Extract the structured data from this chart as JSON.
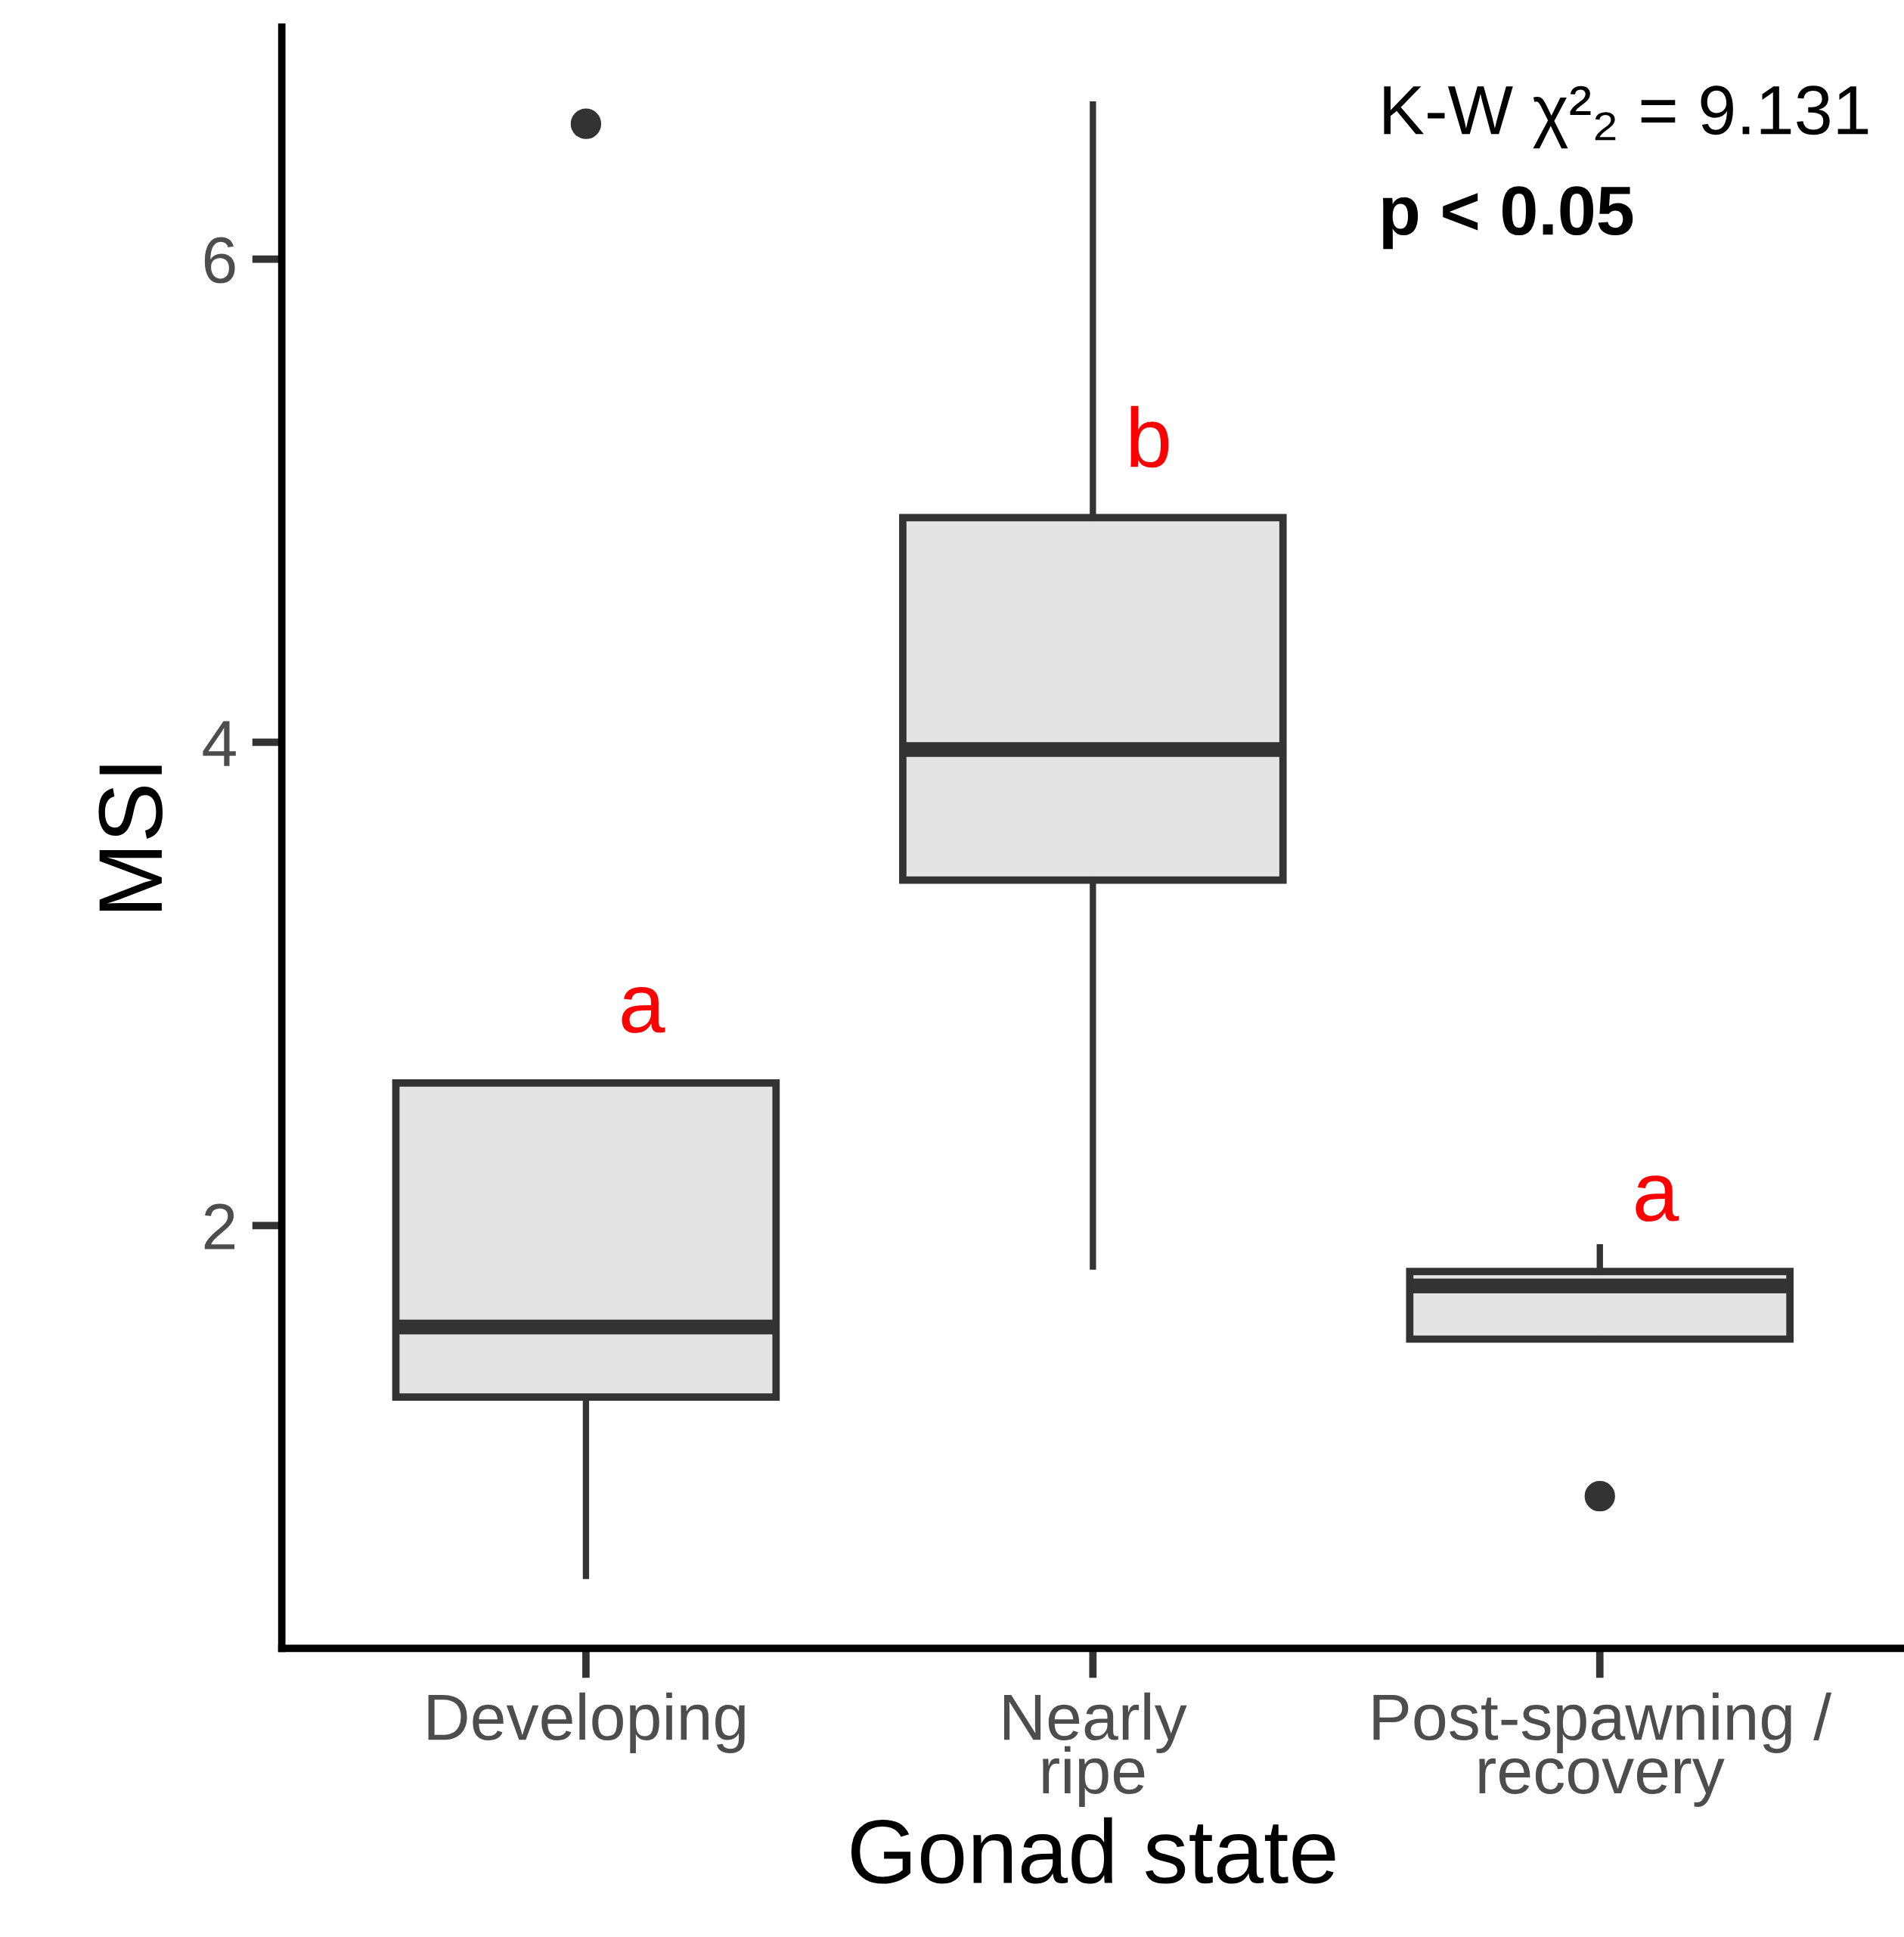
{
  "chart_data": {
    "type": "box",
    "xlabel": "Gonad state",
    "ylabel": "MSI",
    "categories": [
      "Developing",
      "Nearly\nripe",
      "Post-spawning /\nrecovery"
    ],
    "boxes": [
      {
        "low": 0.55,
        "q1": 1.29,
        "median": 1.58,
        "q3": 2.59,
        "high": 2.59,
        "outliers": [
          6.56
        ]
      },
      {
        "low": 1.83,
        "q1": 3.43,
        "median": 3.97,
        "q3": 4.93,
        "high": 6.64
      },
      {
        "low": 1.53,
        "q1": 1.53,
        "median": 1.75,
        "q3": 1.81,
        "high": 1.91,
        "outliers": [
          0.88
        ]
      }
    ],
    "color": "#e4e4e4",
    "ylim": [
      0.25,
      6.96
    ],
    "yticks": [
      2,
      4,
      6
    ],
    "grid": false,
    "annotations": [
      "K-W χ²₂ = 9.131",
      "p < 0.05",
      "a",
      "b",
      "a"
    ]
  }
}
